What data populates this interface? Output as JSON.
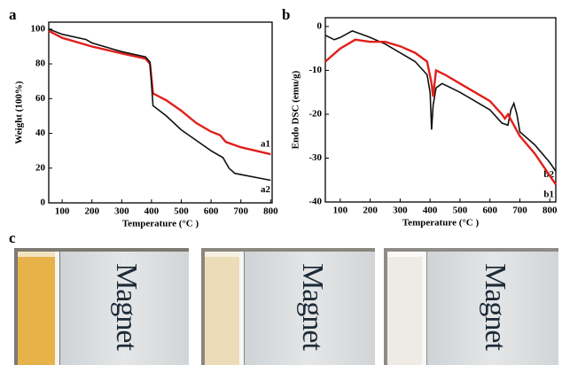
{
  "chart_data": [
    {
      "type": "line",
      "panel_label": "a",
      "ylabel": "Weight (100%)",
      "xlabel": "Temperature (°C )",
      "xlim": [
        55,
        805
      ],
      "ylim": [
        0,
        104
      ],
      "xticks": [
        100,
        200,
        300,
        400,
        500,
        600,
        700,
        800
      ],
      "yticks": [
        0,
        20,
        40,
        60,
        80,
        100
      ],
      "series": [
        {
          "name": "a1",
          "color": "#e0201c",
          "x": [
            55,
            100,
            200,
            300,
            380,
            395,
            405,
            450,
            500,
            550,
            600,
            630,
            650,
            700,
            800
          ],
          "values": [
            99,
            95,
            90,
            86,
            83,
            80,
            63,
            59,
            53,
            46,
            41,
            39,
            35,
            32,
            28
          ]
        },
        {
          "name": "a2",
          "color": "#111111",
          "x": [
            55,
            100,
            180,
            200,
            300,
            380,
            395,
            405,
            450,
            500,
            550,
            600,
            640,
            660,
            680,
            800
          ],
          "values": [
            100,
            97,
            94,
            92,
            87,
            84,
            81,
            56,
            50,
            42,
            36,
            30,
            26,
            20,
            17,
            13
          ]
        }
      ]
    },
    {
      "type": "line",
      "panel_label": "b",
      "ylabel": "Endo DSC (emu/g)",
      "xlabel": "Temperature (°C )",
      "xlim": [
        50,
        820
      ],
      "ylim": [
        -40,
        2
      ],
      "xticks": [
        100,
        200,
        300,
        400,
        500,
        600,
        700,
        800
      ],
      "yticks": [
        0,
        -10,
        -20,
        -30,
        -40
      ],
      "series": [
        {
          "name": "b2",
          "color": "#111111",
          "x": [
            50,
            80,
            100,
            140,
            180,
            200,
            250,
            300,
            350,
            390,
            400,
            405,
            410,
            420,
            440,
            470,
            500,
            550,
            600,
            640,
            660,
            670,
            680,
            690,
            700,
            750,
            800,
            820
          ],
          "values": [
            -2,
            -3,
            -2.5,
            -1,
            -2,
            -2.5,
            -4,
            -6,
            -8,
            -11,
            -15,
            -23.5,
            -18,
            -14,
            -13,
            -14,
            -15,
            -17,
            -19,
            -22,
            -22.5,
            -19,
            -17.5,
            -20,
            -24,
            -27,
            -31,
            -33
          ]
        },
        {
          "name": "b1",
          "color": "#e0201c",
          "x": [
            50,
            100,
            150,
            200,
            250,
            300,
            350,
            390,
            405,
            410,
            420,
            450,
            500,
            550,
            600,
            640,
            650,
            660,
            700,
            750,
            800,
            820
          ],
          "values": [
            -8,
            -5,
            -3,
            -3.5,
            -3.5,
            -4.5,
            -6,
            -8,
            -13,
            -16,
            -10,
            -11,
            -13,
            -15,
            -17,
            -20,
            -21,
            -20,
            -25,
            -29,
            -34,
            -36
          ]
        }
      ]
    }
  ],
  "photos": {
    "panel_label": "c",
    "items": [
      {
        "text": "Magnet"
      },
      {
        "text": "Magnet"
      },
      {
        "text": "Magnet"
      }
    ]
  }
}
